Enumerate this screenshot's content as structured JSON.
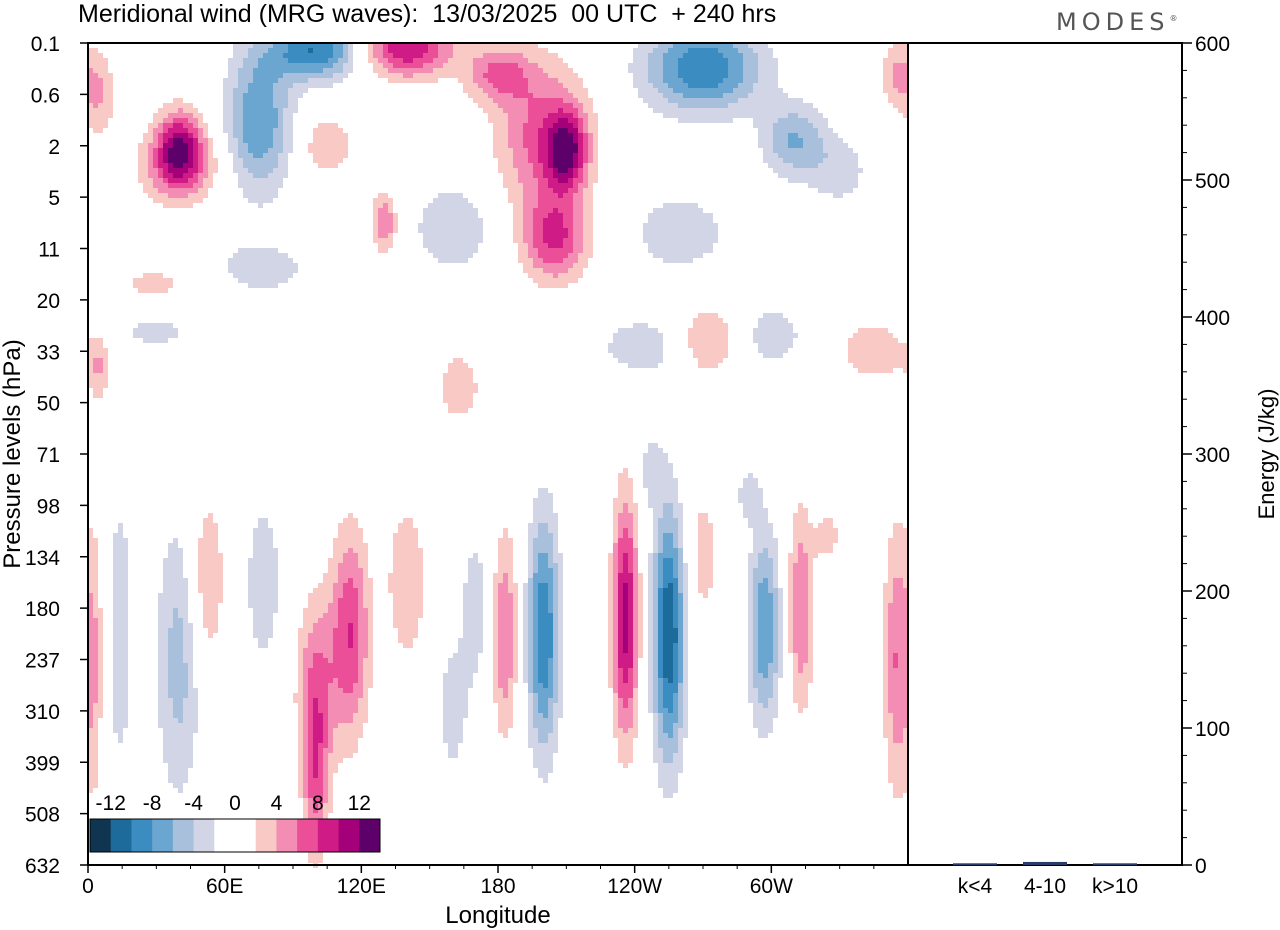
{
  "title": "Meridional wind (MRG waves):  13/03/2025  00 UTC  + 240 hrs",
  "brand": "MODES",
  "brand_mark": "®",
  "colors": {
    "neg": [
      "#0f3550",
      "#1c6b9b",
      "#3b8cc0",
      "#6aa6cf",
      "#a8c0dc",
      "#d2d5e6"
    ],
    "zero": "#ffffff",
    "pos": [
      "#f9c9c6",
      "#f48db3",
      "#ea4f98",
      "#cf1b86",
      "#a3007a",
      "#5e006a"
    ]
  },
  "chart_data": [
    {
      "type": "heatmap",
      "xlabel": "Longitude",
      "ylabel": "Pressure levels (hPa)",
      "x_ticks": [
        "0",
        "60E",
        "120E",
        "180",
        "120W",
        "60W"
      ],
      "y_ticks": [
        "0.1",
        "0.6",
        "2",
        "5",
        "11",
        "20",
        "33",
        "50",
        "71",
        "98",
        "134",
        "180",
        "237",
        "310",
        "399",
        "508",
        "632"
      ],
      "colorbar_ticks": [
        "-12",
        "-8",
        "-4",
        "0",
        "4",
        "8",
        "12"
      ],
      "features": [
        {
          "lon": 200,
          "lev": 11.5,
          "lonw": 5,
          "levw": 1.6,
          "v": -10
        },
        {
          "lon": 236,
          "lev": 11.2,
          "lonw": 4,
          "levw": 1.6,
          "v": 11
        },
        {
          "lon": 255,
          "lev": 11.5,
          "lonw": 5,
          "levw": 1.7,
          "v": -12
        },
        {
          "lon": 183,
          "lev": 11.5,
          "lonw": 4,
          "levw": 1.4,
          "v": 6
        },
        {
          "lon": 297,
          "lev": 11.4,
          "lonw": 5,
          "levw": 1.3,
          "v": -8
        },
        {
          "lon": 313,
          "lev": 11.0,
          "lonw": 4,
          "levw": 1.4,
          "v": 6
        },
        {
          "lon": 115,
          "lev": 11.5,
          "lonw": 6,
          "levw": 1.4,
          "v": 8
        },
        {
          "lon": 100,
          "lev": 12.5,
          "lonw": 6,
          "levw": 1.2,
          "v": 6
        },
        {
          "lon": 140,
          "lev": 10.5,
          "lonw": 6,
          "levw": 1.1,
          "v": 4
        },
        {
          "lon": 100,
          "lev": 14.4,
          "lonw": 4,
          "levw": 1.1,
          "v": 6
        },
        {
          "lon": 40,
          "lev": 12.0,
          "lonw": 7,
          "levw": 1.9,
          "v": -5
        },
        {
          "lon": 14,
          "lev": 11.5,
          "lonw": 5,
          "levw": 2.4,
          "v": -3
        },
        {
          "lon": 77,
          "lev": 10.5,
          "lonw": 7,
          "levw": 1.4,
          "v": -3
        },
        {
          "lon": 52,
          "lev": 10.5,
          "lonw": 6,
          "levw": 1.3,
          "v": 4
        },
        {
          "lon": 3,
          "lev": 12.0,
          "lonw": 3,
          "levw": 2.0,
          "v": 4
        },
        {
          "lon": 355,
          "lev": 12.0,
          "lonw": 4,
          "levw": 1.8,
          "v": 6
        },
        {
          "lon": 170,
          "lev": 11.0,
          "lonw": 5,
          "levw": 1.2,
          "v": -3
        },
        {
          "lon": 270,
          "lev": 10.0,
          "lonw": 5,
          "levw": 1.0,
          "v": 3
        },
        {
          "lon": 160,
          "lev": 13.0,
          "lonw": 5,
          "levw": 1.0,
          "v": -3
        },
        {
          "lon": 290,
          "lev": 8.8,
          "lonw": 4,
          "levw": 0.4,
          "v": -3
        },
        {
          "lon": 247,
          "lev": 8.3,
          "lonw": 4,
          "levw": 0.5,
          "v": -3
        },
        {
          "lon": 325,
          "lev": 9.6,
          "lonw": 4,
          "levw": 0.4,
          "v": 3
        },
        {
          "lon": 163,
          "lev": 6.7,
          "lonw": 8,
          "levw": 0.6,
          "v": 3
        },
        {
          "lon": 245,
          "lev": 5.9,
          "lonw": 18,
          "levw": 0.5,
          "v": -3
        },
        {
          "lon": 272,
          "lev": 5.8,
          "lonw": 10,
          "levw": 0.5,
          "v": 5
        },
        {
          "lon": 300,
          "lev": 5.7,
          "lonw": 12,
          "levw": 0.5,
          "v": -3
        },
        {
          "lon": 345,
          "lev": 6.0,
          "lonw": 10,
          "levw": 0.4,
          "v": 4
        },
        {
          "lon": 30,
          "lev": 5.5,
          "lonw": 14,
          "levw": 0.4,
          "v": -3
        },
        {
          "lon": 30,
          "lev": 4.8,
          "lonw": 16,
          "levw": 0.4,
          "v": 3
        },
        {
          "lon": 5,
          "lev": 6.3,
          "lonw": 4,
          "levw": 0.5,
          "v": 4
        },
        {
          "lon": 160,
          "lev": 3.6,
          "lonw": 12,
          "levw": 0.6,
          "v": -4
        },
        {
          "lon": 205,
          "lev": 3.8,
          "lonw": 10,
          "levw": 0.6,
          "v": 8
        },
        {
          "lon": 260,
          "lev": 3.7,
          "lonw": 14,
          "levw": 0.5,
          "v": -4
        },
        {
          "lon": 130,
          "lev": 3.5,
          "lonw": 4,
          "levw": 0.4,
          "v": 6
        },
        {
          "lon": 40,
          "lev": 2.4,
          "lonw": 12,
          "levw": 0.5,
          "v": 6
        },
        {
          "lon": 75,
          "lev": 4.4,
          "lonw": 18,
          "levw": 0.4,
          "v": -3
        },
        {
          "lon": 75,
          "lev": 1.5,
          "lonw": 10,
          "levw": 1.0,
          "v": -8
        },
        {
          "lon": 40,
          "lev": 2.0,
          "lonw": 7,
          "levw": 0.5,
          "v": 9
        },
        {
          "lon": 200,
          "lev": 1.8,
          "lonw": 14,
          "levw": 1.0,
          "v": 7
        },
        {
          "lon": 210,
          "lev": 2.1,
          "lonw": 6,
          "levw": 0.5,
          "v": 10
        },
        {
          "lon": 270,
          "lev": 0.5,
          "lonw": 18,
          "levw": 0.6,
          "v": -10
        },
        {
          "lon": 310,
          "lev": 1.9,
          "lonw": 10,
          "levw": 0.5,
          "v": -6
        },
        {
          "lon": 140,
          "lev": 0.1,
          "lonw": 14,
          "levw": 0.4,
          "v": 10
        },
        {
          "lon": 100,
          "lev": 0.15,
          "lonw": 14,
          "levw": 0.4,
          "v": -10
        },
        {
          "lon": 180,
          "lev": 0.6,
          "lonw": 10,
          "levw": 0.4,
          "v": 6
        },
        {
          "lon": 5,
          "lev": 1.0,
          "lonw": 5,
          "levw": 0.6,
          "v": 4
        },
        {
          "lon": 330,
          "lev": 2.5,
          "lonw": 10,
          "levw": 0.5,
          "v": -3
        },
        {
          "lon": 355,
          "lev": 0.6,
          "lonw": 5,
          "levw": 0.5,
          "v": 4
        },
        {
          "lon": 105,
          "lev": 2.0,
          "lonw": 8,
          "levw": 0.4,
          "v": 4
        }
      ]
    },
    {
      "type": "bar",
      "categories": [
        "k<4",
        "4-10",
        "k>10"
      ],
      "values": [
        0.5,
        1.5,
        0.5
      ],
      "ylabel": "Energy (J/kg)",
      "ylim": [
        0,
        600
      ],
      "y_ticks": [
        0,
        100,
        200,
        300,
        400,
        500,
        600
      ]
    }
  ]
}
